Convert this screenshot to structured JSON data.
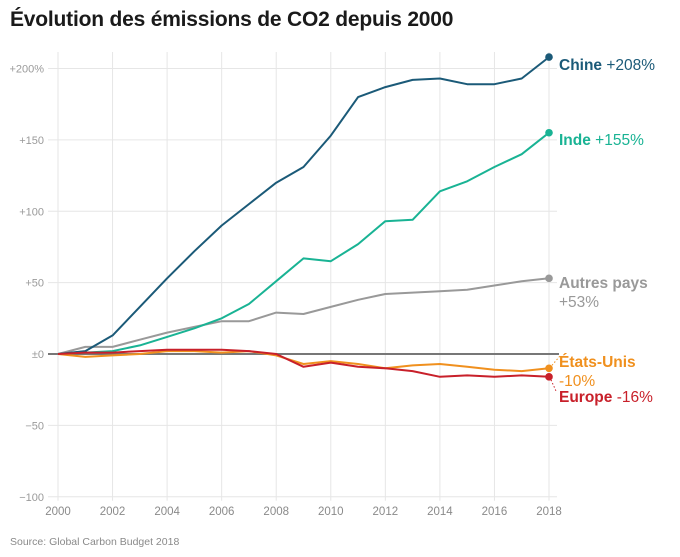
{
  "chart_data": {
    "type": "line",
    "title": "Évolution des émissions de CO2 depuis 2000",
    "source": "Source: Global Carbon Budget 2018",
    "xlabel": "",
    "ylabel": "",
    "xlim": [
      2000,
      2018
    ],
    "ylim": [
      -100,
      210
    ],
    "grid": true,
    "x": [
      2000,
      2001,
      2002,
      2003,
      2004,
      2005,
      2006,
      2007,
      2008,
      2009,
      2010,
      2011,
      2012,
      2013,
      2014,
      2015,
      2016,
      2017,
      2018
    ],
    "x_ticks": [
      2000,
      2002,
      2004,
      2006,
      2008,
      2010,
      2012,
      2014,
      2016,
      2018
    ],
    "x_tick_labels": [
      "2000",
      "2002",
      "2004",
      "2006",
      "2008",
      "2010",
      "2012",
      "2014",
      "2016",
      "2018"
    ],
    "y_ticks": [
      200,
      150,
      100,
      50,
      0,
      -50,
      -100
    ],
    "y_tick_labels": [
      "+200%",
      "+150",
      "+100",
      "+50",
      "±0",
      "−50",
      "−100"
    ],
    "baseline": 0,
    "series": [
      {
        "name": "Autres pays",
        "label_name": "Autres pays",
        "label_value": "+53%",
        "color": "#999999",
        "values": [
          0,
          5,
          5,
          10,
          15,
          19,
          23,
          23,
          29,
          28,
          33,
          38,
          42,
          43,
          44,
          45,
          48,
          51,
          53
        ]
      },
      {
        "name": "Inde",
        "label_name": "Inde",
        "label_value": "+155%",
        "color": "#19b394",
        "values": [
          0,
          1,
          2,
          6,
          12,
          18,
          25,
          35,
          51,
          67,
          65,
          77,
          93,
          94,
          114,
          121,
          131,
          140,
          155
        ]
      },
      {
        "name": "Chine",
        "label_name": "Chine",
        "label_value": "+208%",
        "color": "#1b5a78",
        "values": [
          0,
          2,
          13,
          33,
          53,
          72,
          90,
          105,
          120,
          131,
          153,
          180,
          187,
          192,
          193,
          189,
          189,
          193,
          208
        ]
      },
      {
        "name": "États-Unis",
        "label_name": "États-Unis",
        "label_value": "-10%",
        "color": "#f0901e",
        "values": [
          0,
          -2,
          -1,
          0,
          2,
          2,
          1,
          2,
          -1,
          -7,
          -5,
          -7,
          -10,
          -8,
          -7,
          -9,
          -11,
          -12,
          -10
        ]
      },
      {
        "name": "Europe",
        "label_name": "Europe",
        "label_value": "-16%",
        "color": "#c8202a",
        "values": [
          0,
          1,
          1,
          2,
          3,
          3,
          3,
          2,
          0,
          -9,
          -6,
          -9,
          -10,
          -12,
          -16,
          -15,
          -16,
          -15,
          -16
        ]
      }
    ]
  }
}
